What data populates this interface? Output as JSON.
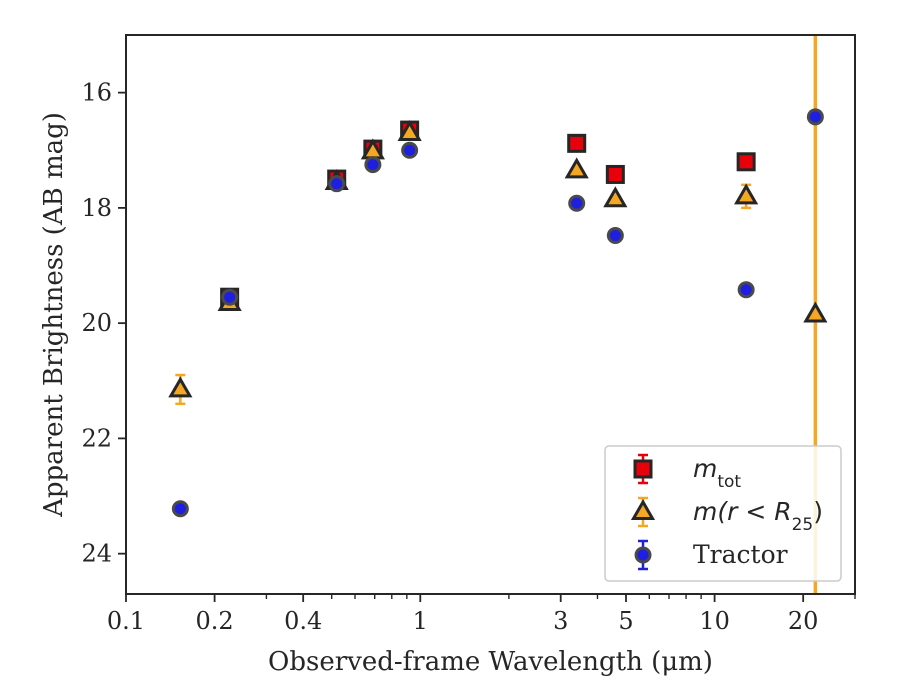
{
  "chart_data": {
    "type": "scatter",
    "xlabel": "Observed-frame Wavelength (μm)",
    "ylabel": "Apparent Brightness (AB mag)",
    "xscale": "log",
    "xlim": [
      0.1,
      30
    ],
    "ylim": [
      24.7,
      15.0
    ],
    "y_inverted": true,
    "x_ticks": [
      {
        "value": 0.1,
        "label": "0.1"
      },
      {
        "value": 0.2,
        "label": "0.2"
      },
      {
        "value": 0.4,
        "label": "0.4"
      },
      {
        "value": 1,
        "label": "1"
      },
      {
        "value": 3,
        "label": "3"
      },
      {
        "value": 5,
        "label": "5"
      },
      {
        "value": 10,
        "label": "10"
      },
      {
        "value": 20,
        "label": "20"
      }
    ],
    "y_ticks": [
      {
        "value": 16,
        "label": "16"
      },
      {
        "value": 18,
        "label": "18"
      },
      {
        "value": 20,
        "label": "20"
      },
      {
        "value": 22,
        "label": "22"
      },
      {
        "value": 24,
        "label": "24"
      }
    ],
    "grid": false,
    "vertical_line": {
      "x": 22,
      "color": "#f5a623"
    },
    "series": [
      {
        "name": "m_tot",
        "legend_main": "m",
        "legend_sub": "tot",
        "marker": "square",
        "fill": "#e8000b",
        "error_color": "#e8000b",
        "x": [
          0.225,
          0.52,
          0.69,
          0.92,
          3.4,
          4.6,
          12.8
        ],
        "y": [
          19.55,
          17.5,
          16.98,
          16.65,
          16.88,
          17.42,
          17.2
        ],
        "yerr": [
          0.02,
          0.02,
          0.02,
          0.02,
          0.02,
          0.02,
          0.03
        ]
      },
      {
        "name": "m(r < R25)",
        "legend_main": "m(r < R",
        "legend_sub": "25",
        "legend_tail": ")",
        "marker": "triangle",
        "fill": "#f5a623",
        "error_color": "#f5a623",
        "x": [
          0.153,
          0.225,
          0.52,
          0.69,
          0.92,
          3.4,
          4.6,
          12.8,
          22
        ],
        "y": [
          21.15,
          19.65,
          17.55,
          17.02,
          16.7,
          17.35,
          17.85,
          17.8,
          19.85
        ],
        "yerr": [
          0.25,
          0.03,
          0.02,
          0.02,
          0.02,
          0.02,
          0.05,
          0.2,
          0.03
        ]
      },
      {
        "name": "Tractor",
        "legend_main": "Tractor",
        "marker": "circle",
        "fill": "#1f1fe0",
        "error_color": "#1f1fe0",
        "x": [
          0.153,
          0.225,
          0.52,
          0.69,
          0.92,
          3.4,
          4.6,
          12.8,
          22
        ],
        "y": [
          23.22,
          19.55,
          17.58,
          17.25,
          17.0,
          17.92,
          18.48,
          19.42,
          16.42
        ],
        "yerr": [
          0.03,
          0.02,
          0.02,
          0.02,
          0.02,
          0.02,
          0.02,
          0.02,
          0.02
        ]
      }
    ],
    "legend_position": "lower-right"
  }
}
